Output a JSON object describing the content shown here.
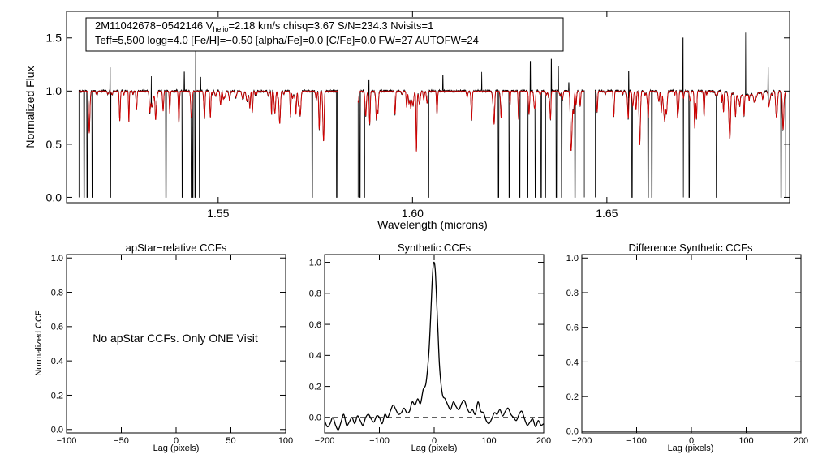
{
  "chart_data": [
    {
      "type": "line",
      "id": "spectrum",
      "info_line1": "2M11042678−0542146  V",
      "info_vsub": "helio",
      "info_line1b": "=2.18 km/s  chisq=3.67  S/N=234.3  Nvisits=1",
      "info_line2": "Teff=5,500 logg=4.0 [Fe/H]=−0.50 [alpha/Fe]=0.0 [C/Fe]=0.0 FW=27 AUTOFW=24",
      "xlabel": "Wavelength (microns)",
      "ylabel": "Normalized Flux",
      "xlim": [
        1.511,
        1.697
      ],
      "ylim": [
        -0.05,
        1.75
      ],
      "xticks": [
        1.55,
        1.6,
        1.65
      ],
      "xtick_labels": [
        "1.55",
        "1.60",
        "1.65"
      ],
      "yticks": [
        0.0,
        0.5,
        1.0,
        1.5
      ],
      "ytick_labels": [
        "0.0",
        "0.5",
        "1.0",
        "1.5"
      ],
      "segments": [
        [
          1.5142,
          1.5808
        ],
        [
          1.586,
          1.6442
        ],
        [
          1.647,
          1.696
        ]
      ],
      "series": [
        {
          "name": "observed",
          "color": "#000000"
        },
        {
          "name": "model",
          "color": "#d40000"
        }
      ],
      "strong_lines": [
        {
          "x": 1.5155,
          "depth": 0.99
        },
        {
          "x": 1.5163,
          "depth": 0.99
        },
        {
          "x": 1.5176,
          "depth": 0.99
        },
        {
          "x": 1.5223,
          "depth": 0.99
        },
        {
          "x": 1.5366,
          "depth": 0.99
        },
        {
          "x": 1.5408,
          "depth": 0.99
        },
        {
          "x": 1.5431,
          "depth": 0.99
        },
        {
          "x": 1.5435,
          "depth": 0.99
        },
        {
          "x": 1.5441,
          "depth": 0.99
        },
        {
          "x": 1.5452,
          "depth": 0.99
        },
        {
          "x": 1.5742,
          "depth": 0.99
        },
        {
          "x": 1.5805,
          "depth": 0.99
        },
        {
          "x": 1.5865,
          "depth": 0.99
        },
        {
          "x": 1.5876,
          "depth": 0.99
        },
        {
          "x": 1.6041,
          "depth": 0.99
        },
        {
          "x": 1.6221,
          "depth": 0.99
        },
        {
          "x": 1.6249,
          "depth": 0.99
        },
        {
          "x": 1.6276,
          "depth": 0.99
        },
        {
          "x": 1.6296,
          "depth": 0.99
        },
        {
          "x": 1.6316,
          "depth": 0.99
        },
        {
          "x": 1.6331,
          "depth": 0.99
        },
        {
          "x": 1.6342,
          "depth": 0.99
        },
        {
          "x": 1.637,
          "depth": 0.99
        },
        {
          "x": 1.6384,
          "depth": 0.99
        },
        {
          "x": 1.6418,
          "depth": 0.99
        },
        {
          "x": 1.6565,
          "depth": 0.99
        },
        {
          "x": 1.6606,
          "depth": 0.99
        },
        {
          "x": 1.6616,
          "depth": 0.99
        },
        {
          "x": 1.6696,
          "depth": 0.99
        },
        {
          "x": 1.6712,
          "depth": 0.99
        },
        {
          "x": 1.6782,
          "depth": 0.99
        },
        {
          "x": 1.6948,
          "depth": 0.99
        }
      ],
      "emission_spikes": [
        {
          "x": 1.5222,
          "value": 1.22
        },
        {
          "x": 1.5328,
          "value": 1.14
        },
        {
          "x": 1.5413,
          "value": 1.18
        },
        {
          "x": 1.5442,
          "value": 1.38
        },
        {
          "x": 1.5455,
          "value": 1.13
        },
        {
          "x": 1.5888,
          "value": 1.1
        },
        {
          "x": 1.6078,
          "value": 1.15
        },
        {
          "x": 1.6178,
          "value": 1.18
        },
        {
          "x": 1.6303,
          "value": 1.28
        },
        {
          "x": 1.6357,
          "value": 1.3
        },
        {
          "x": 1.6375,
          "value": 1.23
        },
        {
          "x": 1.6402,
          "value": 1.08
        },
        {
          "x": 1.6556,
          "value": 1.19
        },
        {
          "x": 1.6696,
          "value": 1.5
        },
        {
          "x": 1.6857,
          "value": 1.55
        },
        {
          "x": 1.6915,
          "value": 1.22
        }
      ]
    },
    {
      "type": "line",
      "id": "apstar",
      "title": "apStar−relative CCFs",
      "xlabel": "Lag (pixels)",
      "ylabel": "Normalized CCF",
      "xlim": [
        -100,
        100
      ],
      "ylim": [
        -0.02,
        1.02
      ],
      "xticks": [
        -100,
        -50,
        0,
        50,
        100
      ],
      "xtick_labels": [
        "−100",
        "−50",
        "0",
        "50",
        "100"
      ],
      "yticks": [
        0.0,
        0.2,
        0.4,
        0.6,
        0.8,
        1.0
      ],
      "ytick_labels": [
        "0.0",
        "0.2",
        "0.4",
        "0.6",
        "0.8",
        "1.0"
      ],
      "note": "No apStar CCFs.  Only ONE Visit",
      "series": []
    },
    {
      "type": "line",
      "id": "synthetic",
      "title": "Synthetic CCFs",
      "xlabel": "Lag (pixels)",
      "xlim": [
        -200,
        200
      ],
      "ylim": [
        -0.1,
        1.05
      ],
      "xticks": [
        -200,
        -100,
        0,
        100,
        200
      ],
      "xtick_labels": [
        "−200",
        "−100",
        "0",
        "100",
        "200"
      ],
      "yticks": [
        0.0,
        0.2,
        0.4,
        0.6,
        0.8,
        1.0
      ],
      "ytick_labels": [
        "0.0",
        "0.2",
        "0.4",
        "0.6",
        "0.8",
        "1.0"
      ],
      "baseline": 0.0,
      "series": [
        {
          "name": "CCF",
          "x": [
            -200,
            -195,
            -190,
            -185,
            -180,
            -175,
            -170,
            -165,
            -160,
            -155,
            -150,
            -145,
            -140,
            -135,
            -130,
            -125,
            -120,
            -115,
            -110,
            -105,
            -100,
            -95,
            -90,
            -85,
            -80,
            -75,
            -70,
            -65,
            -60,
            -55,
            -50,
            -45,
            -40,
            -35,
            -30,
            -25,
            -20,
            -15,
            -10,
            -7,
            -4,
            -2,
            0,
            2,
            4,
            7,
            10,
            15,
            20,
            25,
            30,
            35,
            40,
            45,
            50,
            55,
            60,
            65,
            70,
            75,
            80,
            85,
            90,
            95,
            100,
            105,
            110,
            115,
            120,
            125,
            130,
            135,
            140,
            145,
            150,
            155,
            160,
            165,
            170,
            175,
            180,
            185,
            190,
            195,
            200
          ],
          "y": [
            -0.02,
            -0.06,
            -0.04,
            0.0,
            -0.05,
            -0.08,
            -0.03,
            0.02,
            -0.05,
            -0.03,
            0.0,
            -0.04,
            0.01,
            -0.02,
            -0.05,
            0.0,
            0.02,
            -0.01,
            -0.03,
            0.01,
            0.0,
            -0.04,
            0.02,
            0.0,
            0.04,
            0.08,
            0.05,
            0.02,
            0.03,
            0.06,
            0.03,
            0.04,
            0.1,
            0.08,
            0.12,
            0.09,
            0.18,
            0.22,
            0.4,
            0.6,
            0.85,
            0.97,
            1.0,
            0.95,
            0.8,
            0.55,
            0.32,
            0.15,
            0.12,
            0.08,
            0.05,
            0.1,
            0.07,
            0.05,
            0.09,
            0.11,
            0.06,
            0.03,
            0.05,
            0.02,
            0.1,
            0.04,
            0.03,
            -0.02,
            -0.04,
            -0.01,
            0.03,
            0.02,
            0.05,
            0.01,
            0.04,
            0.06,
            0.02,
            0.0,
            -0.02,
            0.02,
            0.04,
            -0.01,
            -0.05,
            -0.03,
            -0.01,
            -0.06,
            -0.02,
            -0.05,
            -0.04
          ]
        }
      ]
    },
    {
      "type": "line",
      "id": "difference",
      "title": "Difference Synthetic CCFs",
      "xlabel": "Lag (pixels)",
      "xlim": [
        -200,
        200
      ],
      "ylim": [
        -0.01,
        1.02
      ],
      "xticks": [
        -200,
        -100,
        0,
        100,
        200
      ],
      "xtick_labels": [
        "−200",
        "−100",
        "0",
        "100",
        "200"
      ],
      "yticks": [
        0.0,
        0.2,
        0.4,
        0.6,
        0.8,
        1.0
      ],
      "ytick_labels": [
        "0.0",
        "0.2",
        "0.4",
        "0.6",
        "0.8",
        "1.0"
      ],
      "series": [
        {
          "name": "difference",
          "x": [
            -200,
            200
          ],
          "y": [
            0.0,
            0.0
          ]
        }
      ]
    }
  ]
}
